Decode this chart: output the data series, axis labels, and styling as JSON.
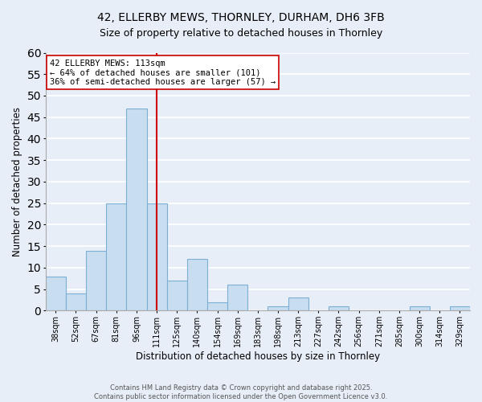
{
  "title_line1": "42, ELLERBY MEWS, THORNLEY, DURHAM, DH6 3FB",
  "title_line2": "Size of property relative to detached houses in Thornley",
  "xlabel": "Distribution of detached houses by size in Thornley",
  "ylabel": "Number of detached properties",
  "bar_labels": [
    "38sqm",
    "52sqm",
    "67sqm",
    "81sqm",
    "96sqm",
    "111sqm",
    "125sqm",
    "140sqm",
    "154sqm",
    "169sqm",
    "183sqm",
    "198sqm",
    "213sqm",
    "227sqm",
    "242sqm",
    "256sqm",
    "271sqm",
    "285sqm",
    "300sqm",
    "314sqm",
    "329sqm"
  ],
  "bar_values": [
    8,
    4,
    14,
    25,
    47,
    25,
    7,
    12,
    2,
    6,
    0,
    1,
    3,
    0,
    1,
    0,
    0,
    0,
    1,
    0,
    1
  ],
  "bar_color": "#c8ddf0",
  "bar_edge_color": "#7bafd4",
  "vline_x": 5,
  "vline_color": "#cc0000",
  "annotation_title": "42 ELLERBY MEWS: 113sqm",
  "annotation_line1": "← 64% of detached houses are smaller (101)",
  "annotation_line2": "36% of semi-detached houses are larger (57) →",
  "annotation_box_color": "#ffffff",
  "annotation_box_edge": "#cc0000",
  "ylim": [
    0,
    60
  ],
  "yticks": [
    0,
    5,
    10,
    15,
    20,
    25,
    30,
    35,
    40,
    45,
    50,
    55,
    60
  ],
  "fig_background_color": "#e8eef8",
  "plot_background_color": "#e8eef8",
  "grid_color": "#ffffff",
  "footer_line1": "Contains HM Land Registry data © Crown copyright and database right 2025.",
  "footer_line2": "Contains public sector information licensed under the Open Government Licence v3.0."
}
